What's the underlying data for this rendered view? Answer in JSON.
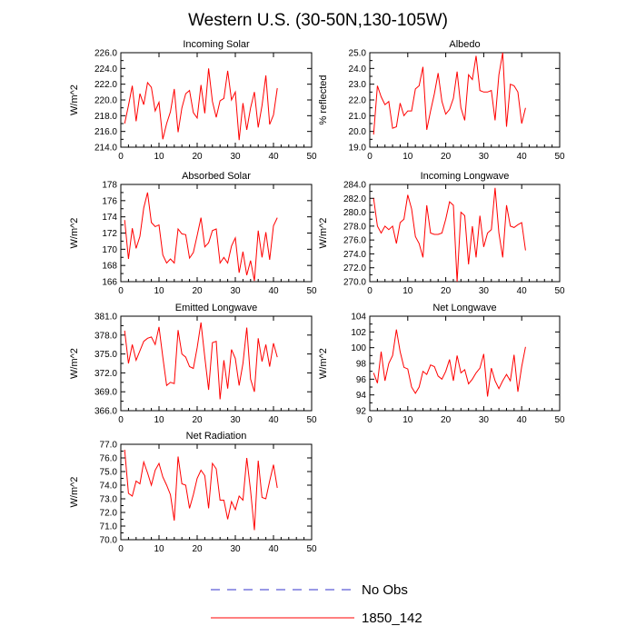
{
  "page": {
    "title": "Western U.S. (30-50N,130-105W)"
  },
  "legend": {
    "entries": [
      {
        "label": "No Obs",
        "color": "#3333cc",
        "dash": "dashed"
      },
      {
        "label": "1850_142",
        "color": "#ff0000",
        "dash": "solid"
      }
    ]
  },
  "chart_data": [
    {
      "type": "line",
      "title": "Incoming Solar",
      "ylabel": "W/m^2",
      "xlabel": "",
      "xlim": [
        0,
        50
      ],
      "ylim": [
        214,
        226
      ],
      "xticks": [
        "0",
        "10",
        "20",
        "30",
        "40",
        "50"
      ],
      "yticks": [
        "214.0",
        "216.0",
        "218.0",
        "220.0",
        "222.0",
        "224.0",
        "226.0"
      ],
      "series": [
        {
          "color": "#ff0000",
          "x": [
            1,
            2,
            3,
            4,
            5,
            6,
            7,
            8,
            9,
            10,
            11,
            12,
            13,
            14,
            15,
            16,
            17,
            18,
            19,
            20,
            21,
            22,
            23,
            24,
            25,
            26,
            27,
            28,
            29,
            30,
            31,
            32,
            33,
            34,
            35,
            36,
            37,
            38,
            39,
            40,
            41
          ],
          "y": [
            217.0,
            219.3,
            221.8,
            217.3,
            220.8,
            219.4,
            222.2,
            221.6,
            218.6,
            219.7,
            215.0,
            217.0,
            218.5,
            221.4,
            215.9,
            219.0,
            220.8,
            221.2,
            218.4,
            217.7,
            221.9,
            218.3,
            224.0,
            219.8,
            217.8,
            219.9,
            220.2,
            223.7,
            220.0,
            221.0,
            214.9,
            219.6,
            216.2,
            219.0,
            221.0,
            216.5,
            219.3,
            223.1,
            216.9,
            218.1,
            221.5
          ]
        }
      ]
    },
    {
      "type": "line",
      "title": "Albedo",
      "ylabel": "% reflected",
      "xlabel": "",
      "xlim": [
        0,
        50
      ],
      "ylim": [
        19,
        25
      ],
      "xticks": [
        "0",
        "10",
        "20",
        "30",
        "40",
        "50"
      ],
      "yticks": [
        "19.0",
        "20.0",
        "21.0",
        "22.0",
        "23.0",
        "24.0",
        "25.0"
      ],
      "series": [
        {
          "color": "#ff0000",
          "x": [
            1,
            2,
            3,
            4,
            5,
            6,
            7,
            8,
            9,
            10,
            11,
            12,
            13,
            14,
            15,
            16,
            17,
            18,
            19,
            20,
            21,
            22,
            23,
            24,
            25,
            26,
            27,
            28,
            29,
            30,
            31,
            32,
            33,
            34,
            35,
            36,
            37,
            38,
            39,
            40,
            41
          ],
          "y": [
            19.8,
            22.9,
            22.2,
            21.7,
            21.9,
            20.2,
            20.3,
            21.8,
            21.0,
            21.3,
            21.3,
            22.7,
            22.9,
            24.1,
            20.1,
            21.3,
            22.4,
            23.7,
            21.9,
            21.1,
            21.4,
            22.1,
            23.8,
            21.5,
            20.7,
            23.6,
            23.3,
            24.8,
            22.6,
            22.5,
            22.5,
            22.6,
            20.7,
            23.6,
            25.0,
            20.3,
            23.0,
            22.9,
            22.5,
            20.5,
            21.5
          ]
        }
      ]
    },
    {
      "type": "line",
      "title": "Absorbed Solar",
      "ylabel": "W/m^2",
      "xlabel": "",
      "xlim": [
        0,
        50
      ],
      "ylim": [
        166,
        178
      ],
      "xticks": [
        "0",
        "10",
        "20",
        "30",
        "40",
        "50"
      ],
      "yticks": [
        "166",
        "168",
        "170",
        "172",
        "174",
        "176",
        "178"
      ],
      "series": [
        {
          "color": "#ff0000",
          "x": [
            1,
            2,
            3,
            4,
            5,
            6,
            7,
            8,
            9,
            10,
            11,
            12,
            13,
            14,
            15,
            16,
            17,
            18,
            19,
            20,
            21,
            22,
            23,
            24,
            25,
            26,
            27,
            28,
            29,
            30,
            31,
            32,
            33,
            34,
            35,
            36,
            37,
            38,
            39,
            40,
            41
          ],
          "y": [
            173.6,
            168.8,
            172.6,
            170.1,
            171.6,
            175.1,
            177.0,
            173.3,
            172.8,
            173.0,
            169.3,
            168.3,
            168.8,
            168.3,
            172.5,
            171.9,
            171.8,
            168.9,
            169.6,
            171.7,
            173.9,
            170.3,
            170.8,
            172.3,
            172.5,
            168.3,
            169.0,
            168.3,
            170.4,
            171.4,
            167.1,
            169.7,
            166.8,
            168.6,
            166.1,
            172.3,
            169.0,
            172.1,
            168.7,
            172.9,
            173.9
          ]
        }
      ]
    },
    {
      "type": "line",
      "title": "Incoming Longwave",
      "ylabel": "W/m^2",
      "xlabel": "",
      "xlim": [
        0,
        50
      ],
      "ylim": [
        270,
        284
      ],
      "xticks": [
        "0",
        "10",
        "20",
        "30",
        "40",
        "50"
      ],
      "yticks": [
        "270.0",
        "272.0",
        "274.0",
        "276.0",
        "278.0",
        "280.0",
        "282.0",
        "284.0"
      ],
      "series": [
        {
          "color": "#ff0000",
          "x": [
            1,
            2,
            3,
            4,
            5,
            6,
            7,
            8,
            9,
            10,
            11,
            12,
            13,
            14,
            15,
            16,
            17,
            18,
            19,
            20,
            21,
            22,
            23,
            24,
            25,
            26,
            27,
            28,
            29,
            30,
            31,
            32,
            33,
            34,
            35,
            36,
            37,
            38,
            39,
            40,
            41
          ],
          "y": [
            282.0,
            278.0,
            277.0,
            278.0,
            277.5,
            278.0,
            275.5,
            278.5,
            279.0,
            282.5,
            280.5,
            276.5,
            275.5,
            273.5,
            281.0,
            277.0,
            276.8,
            276.8,
            277.0,
            279.0,
            281.5,
            281.0,
            270.0,
            280.0,
            279.5,
            272.5,
            278.0,
            273.5,
            279.5,
            275.0,
            277.0,
            277.5,
            283.5,
            277.0,
            273.5,
            281.0,
            278.0,
            277.8,
            278.2,
            278.5,
            274.5
          ]
        }
      ]
    },
    {
      "type": "line",
      "title": "Emitted Longwave",
      "ylabel": "W/m^2",
      "xlabel": "",
      "xlim": [
        0,
        50
      ],
      "ylim": [
        366,
        381
      ],
      "xticks": [
        "0",
        "10",
        "20",
        "30",
        "40",
        "50"
      ],
      "yticks": [
        "366.0",
        "369.0",
        "372.0",
        "375.0",
        "378.0",
        "381.0"
      ],
      "series": [
        {
          "color": "#ff0000",
          "x": [
            1,
            2,
            3,
            4,
            5,
            6,
            7,
            8,
            9,
            10,
            11,
            12,
            13,
            14,
            15,
            16,
            17,
            18,
            19,
            20,
            21,
            22,
            23,
            24,
            25,
            26,
            27,
            28,
            29,
            30,
            31,
            32,
            33,
            34,
            35,
            36,
            37,
            38,
            39,
            40,
            41
          ],
          "y": [
            378.7,
            373.5,
            376.5,
            374.0,
            375.5,
            377.0,
            377.5,
            377.7,
            376.5,
            379.3,
            374.5,
            370.0,
            370.5,
            370.3,
            378.8,
            375.0,
            374.5,
            373.0,
            372.7,
            376.0,
            380.0,
            374.5,
            369.3,
            376.8,
            377.0,
            367.8,
            374.0,
            369.5,
            375.7,
            374.3,
            370.0,
            373.5,
            379.2,
            371.0,
            369.0,
            377.5,
            373.8,
            376.5,
            373.0,
            376.7,
            374.5
          ]
        }
      ]
    },
    {
      "type": "line",
      "title": "Net Longwave",
      "ylabel": "W/m^2",
      "xlabel": "",
      "xlim": [
        0,
        50
      ],
      "ylim": [
        92,
        104
      ],
      "xticks": [
        "0",
        "10",
        "20",
        "30",
        "40",
        "50"
      ],
      "yticks": [
        "92",
        "94",
        "96",
        "98",
        "100",
        "102",
        "104"
      ],
      "series": [
        {
          "color": "#ff0000",
          "x": [
            1,
            2,
            3,
            4,
            5,
            6,
            7,
            8,
            9,
            10,
            11,
            12,
            13,
            14,
            15,
            16,
            17,
            18,
            19,
            20,
            21,
            22,
            23,
            24,
            25,
            26,
            27,
            28,
            29,
            30,
            31,
            32,
            33,
            34,
            35,
            36,
            37,
            38,
            39,
            40,
            41
          ],
          "y": [
            96.8,
            95.5,
            99.5,
            95.8,
            98.0,
            99.0,
            102.3,
            99.5,
            97.5,
            97.3,
            95.0,
            94.2,
            95.0,
            97.0,
            96.6,
            97.8,
            97.6,
            96.4,
            96.0,
            97.0,
            98.5,
            95.8,
            99.0,
            96.8,
            97.2,
            95.4,
            96.0,
            96.8,
            97.4,
            99.2,
            93.8,
            97.4,
            95.8,
            94.8,
            95.8,
            96.6,
            95.8,
            99.1,
            94.4,
            97.6,
            100.1
          ]
        }
      ]
    },
    {
      "type": "line",
      "title": "Net Radiation",
      "ylabel": "W/m^2",
      "xlabel": "",
      "xlim": [
        0,
        50
      ],
      "ylim": [
        70,
        77
      ],
      "xticks": [
        "0",
        "10",
        "20",
        "30",
        "40",
        "50"
      ],
      "yticks": [
        "70.0",
        "71.0",
        "72.0",
        "73.0",
        "74.0",
        "75.0",
        "76.0",
        "77.0"
      ],
      "series": [
        {
          "color": "#ff0000",
          "x": [
            1,
            2,
            3,
            4,
            5,
            6,
            7,
            8,
            9,
            10,
            11,
            12,
            13,
            14,
            15,
            16,
            17,
            18,
            19,
            20,
            21,
            22,
            23,
            24,
            25,
            26,
            27,
            28,
            29,
            30,
            31,
            32,
            33,
            34,
            35,
            36,
            37,
            38,
            39,
            40,
            41
          ],
          "y": [
            76.6,
            73.4,
            73.2,
            74.3,
            74.1,
            75.7,
            74.9,
            74.0,
            75.1,
            75.6,
            74.6,
            74.0,
            73.3,
            71.4,
            76.1,
            74.1,
            74.0,
            72.3,
            73.3,
            74.5,
            75.1,
            74.7,
            72.3,
            75.6,
            75.2,
            72.9,
            72.9,
            71.5,
            72.8,
            72.2,
            73.2,
            72.9,
            76.0,
            73.6,
            70.7,
            75.8,
            73.1,
            73.0,
            74.3,
            75.5,
            73.8
          ]
        }
      ]
    }
  ]
}
